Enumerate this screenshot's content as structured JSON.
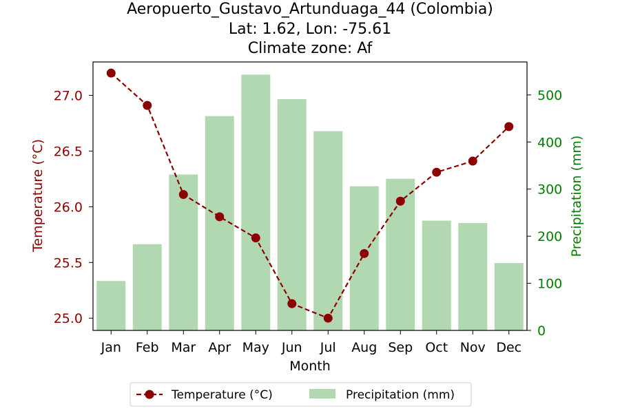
{
  "chart_data": {
    "type": "bar+line",
    "title_lines": [
      "Aeropuerto_Gustavo_Artunduaga_44 (Colombia)",
      "Lat: 1.62, Lon: -75.61",
      "Climate zone: Af"
    ],
    "xlabel": "Month",
    "categories": [
      "Jan",
      "Feb",
      "Mar",
      "Apr",
      "May",
      "Jun",
      "Jul",
      "Aug",
      "Sep",
      "Oct",
      "Nov",
      "Dec"
    ],
    "temperature": {
      "name": "Temperature (°C)",
      "axis_label": "Temperature (°C)",
      "color": "#8b0000",
      "values": [
        27.2,
        26.91,
        26.11,
        25.91,
        25.72,
        25.13,
        25.0,
        25.58,
        26.05,
        26.31,
        26.41,
        26.72
      ],
      "ylim": [
        24.89,
        27.3
      ],
      "ticks": [
        25.0,
        25.5,
        26.0,
        26.5,
        27.0
      ],
      "tick_labels": [
        "25.0",
        "25.5",
        "26.0",
        "26.5",
        "27.0"
      ]
    },
    "precipitation": {
      "name": "Precipitation (mm)",
      "axis_label": "Precipitation (mm)",
      "color": "#008000",
      "bar_color": "#b2d8b2",
      "values": [
        105,
        183,
        331,
        455,
        543,
        491,
        423,
        306,
        322,
        233,
        228,
        143
      ],
      "ylim": [
        0,
        570
      ],
      "ticks": [
        0,
        100,
        200,
        300,
        400,
        500
      ],
      "tick_labels": [
        "0",
        "100",
        "200",
        "300",
        "400",
        "500"
      ]
    },
    "legend": {
      "placement": "bottom-center",
      "entries": [
        "Temperature (°C)",
        "Precipitation (mm)"
      ]
    }
  }
}
